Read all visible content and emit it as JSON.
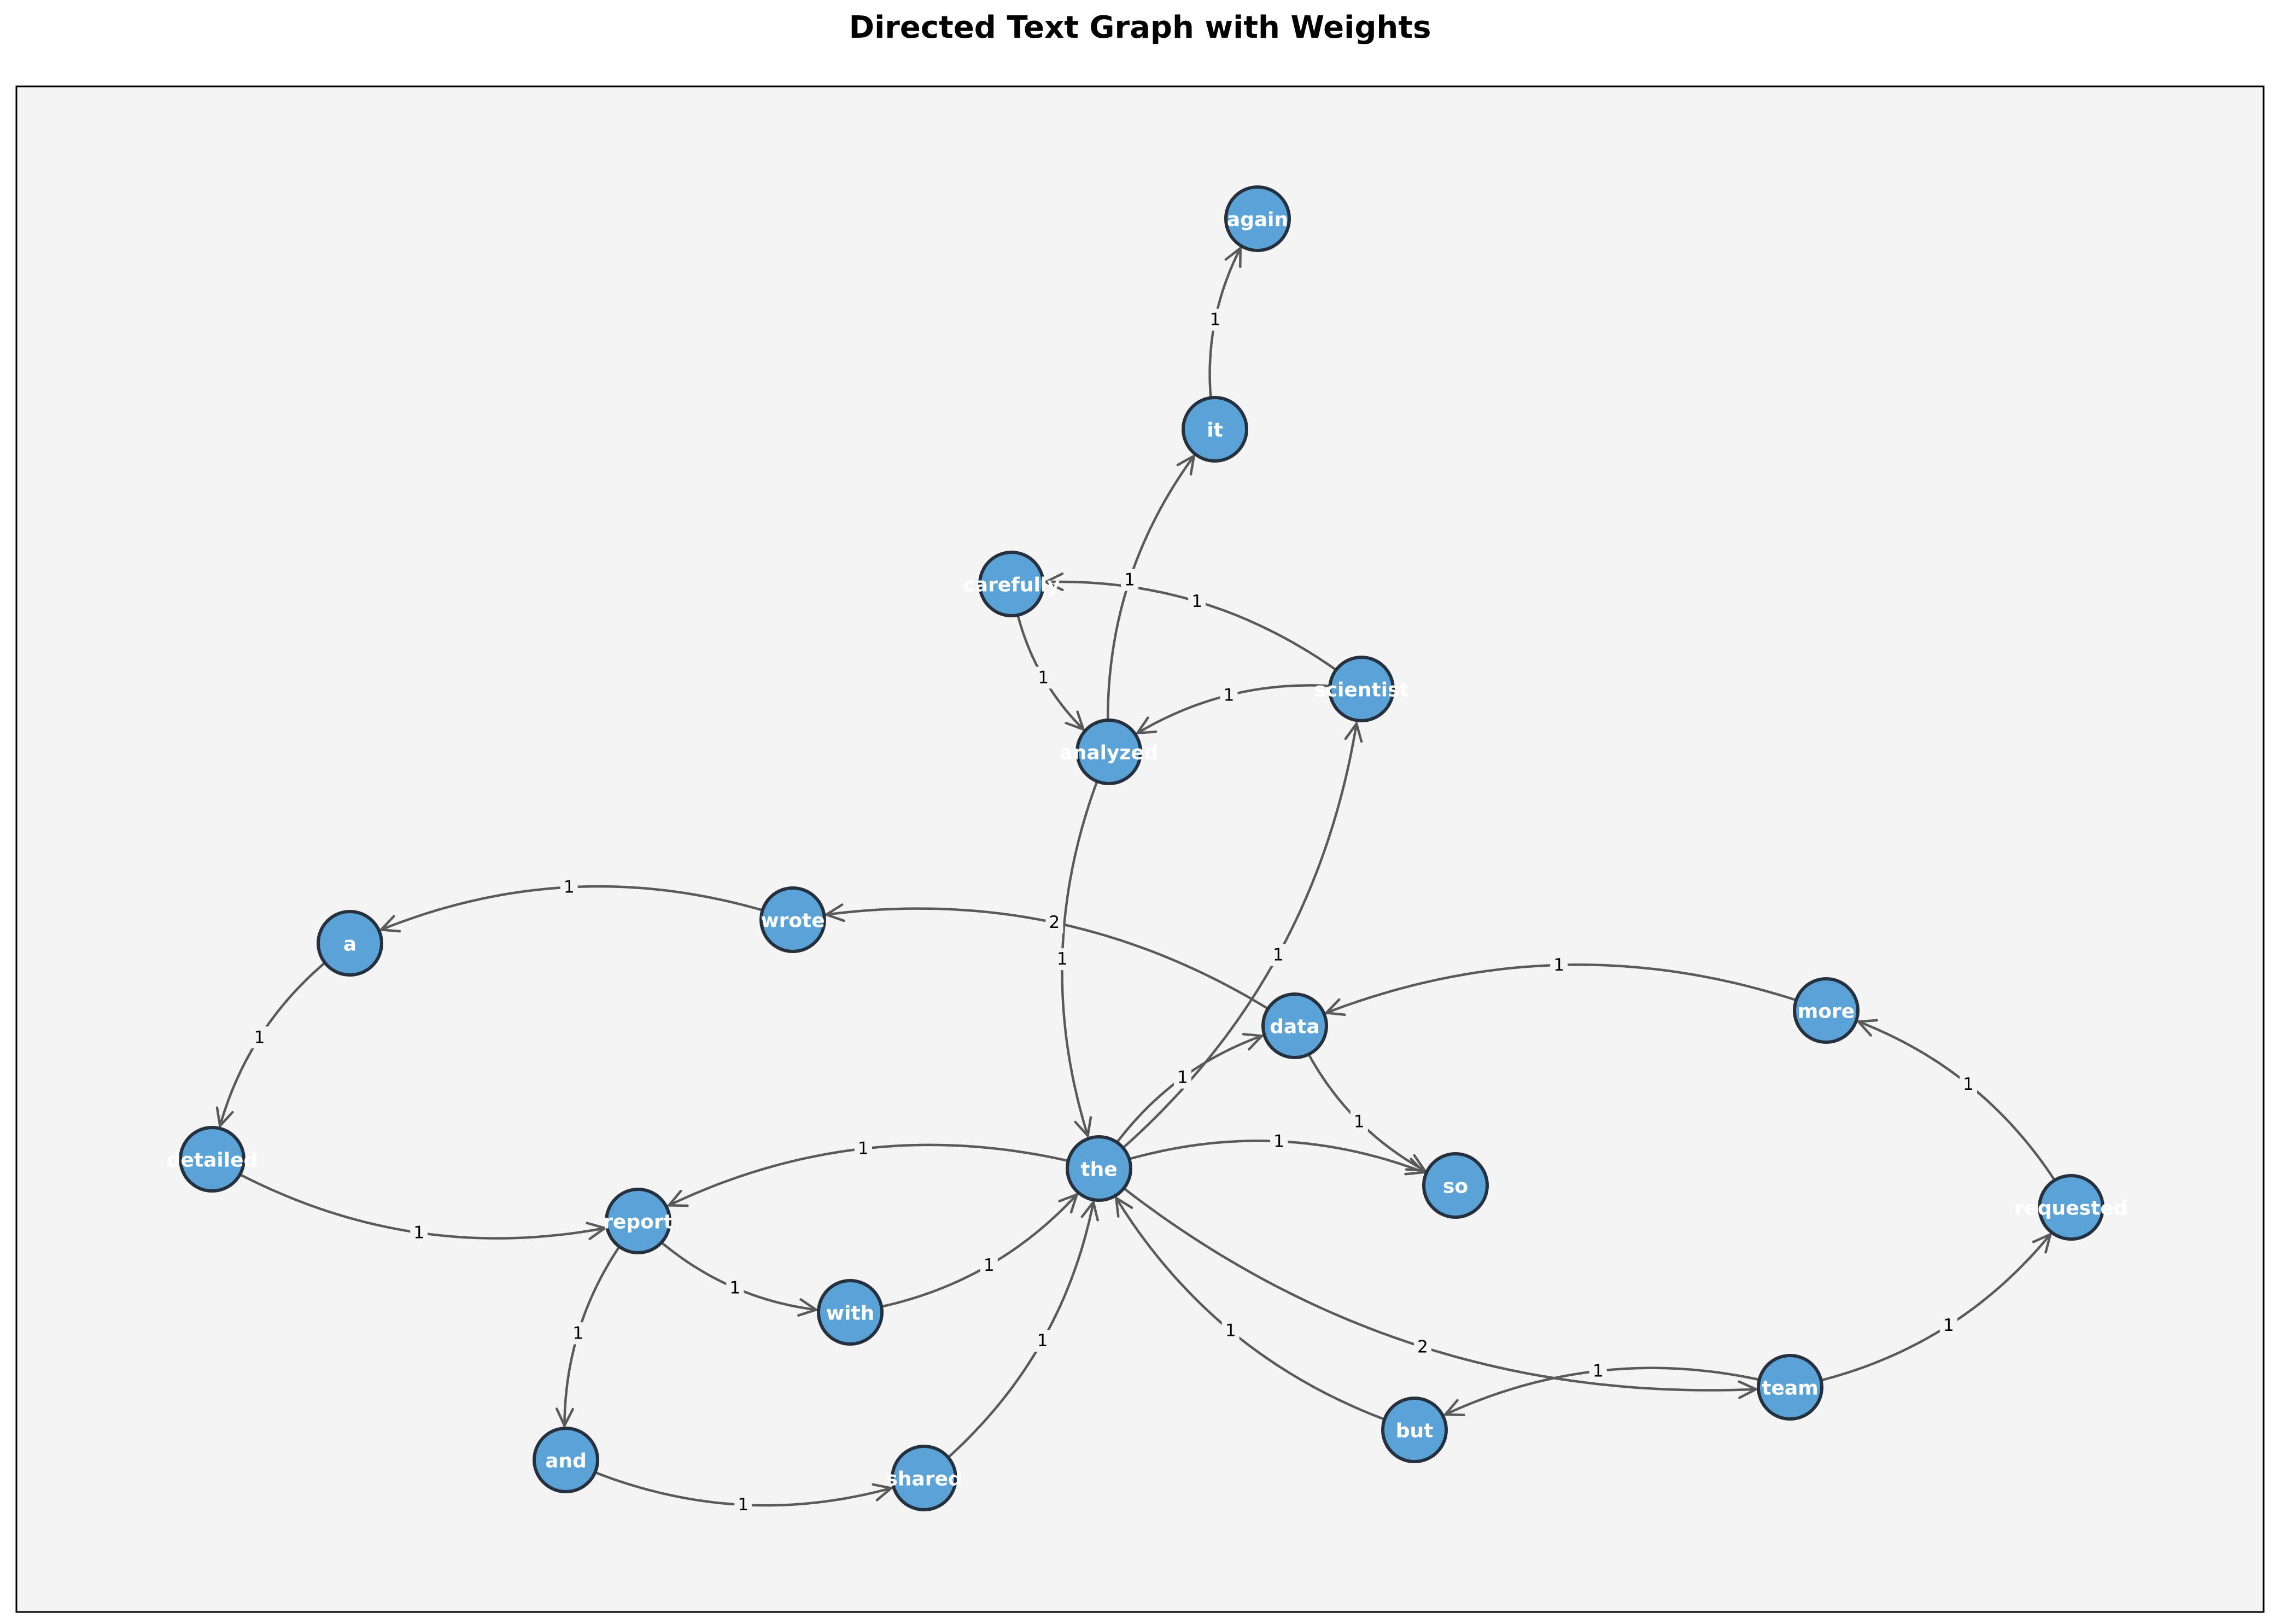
{
  "title": "Directed Text Graph with Weights",
  "colors": {
    "node_fill": "#5ba3d7",
    "node_stroke": "#26313f",
    "edge": "#5a5a5a",
    "plot_bg": "#f4f4f4"
  },
  "nodes": [
    {
      "id": "again",
      "label": "again"
    },
    {
      "id": "it",
      "label": "it"
    },
    {
      "id": "carefully",
      "label": "carefully"
    },
    {
      "id": "scientist",
      "label": "scientist"
    },
    {
      "id": "analyzed",
      "label": "analyzed"
    },
    {
      "id": "a",
      "label": "a"
    },
    {
      "id": "wrote",
      "label": "wrote"
    },
    {
      "id": "data",
      "label": "data"
    },
    {
      "id": "more",
      "label": "more"
    },
    {
      "id": "detailed",
      "label": "detailed"
    },
    {
      "id": "report",
      "label": "report"
    },
    {
      "id": "the",
      "label": "the"
    },
    {
      "id": "so",
      "label": "so"
    },
    {
      "id": "requested",
      "label": "requested"
    },
    {
      "id": "with",
      "label": "with"
    },
    {
      "id": "and",
      "label": "and"
    },
    {
      "id": "shared",
      "label": "shared"
    },
    {
      "id": "but",
      "label": "but"
    },
    {
      "id": "team",
      "label": "team"
    }
  ],
  "edges": [
    {
      "from": "it",
      "to": "again",
      "weight": "1"
    },
    {
      "from": "analyzed",
      "to": "it",
      "weight": "1"
    },
    {
      "from": "scientist",
      "to": "carefully",
      "weight": "1"
    },
    {
      "from": "carefully",
      "to": "analyzed",
      "weight": "1"
    },
    {
      "from": "scientist",
      "to": "analyzed",
      "weight": "1"
    },
    {
      "from": "analyzed",
      "to": "the",
      "weight": "1"
    },
    {
      "from": "the",
      "to": "scientist",
      "weight": "1"
    },
    {
      "from": "wrote",
      "to": "a",
      "weight": "1"
    },
    {
      "from": "data",
      "to": "wrote",
      "weight": "2"
    },
    {
      "from": "a",
      "to": "detailed",
      "weight": "1"
    },
    {
      "from": "detailed",
      "to": "report",
      "weight": "1"
    },
    {
      "from": "more",
      "to": "data",
      "weight": "1"
    },
    {
      "from": "requested",
      "to": "more",
      "weight": "1"
    },
    {
      "from": "the",
      "to": "data",
      "weight": "1"
    },
    {
      "from": "data",
      "to": "so",
      "weight": "1"
    },
    {
      "from": "the",
      "to": "so",
      "weight": "1"
    },
    {
      "from": "the",
      "to": "report",
      "weight": "1"
    },
    {
      "from": "report",
      "to": "with",
      "weight": "1"
    },
    {
      "from": "with",
      "to": "the",
      "weight": "1"
    },
    {
      "from": "report",
      "to": "and",
      "weight": "1"
    },
    {
      "from": "and",
      "to": "shared",
      "weight": "1"
    },
    {
      "from": "shared",
      "to": "the",
      "weight": "1"
    },
    {
      "from": "but",
      "to": "the",
      "weight": "1"
    },
    {
      "from": "the",
      "to": "team",
      "weight": "2"
    },
    {
      "from": "team",
      "to": "but",
      "weight": "1"
    },
    {
      "from": "team",
      "to": "requested",
      "weight": "1"
    }
  ]
}
